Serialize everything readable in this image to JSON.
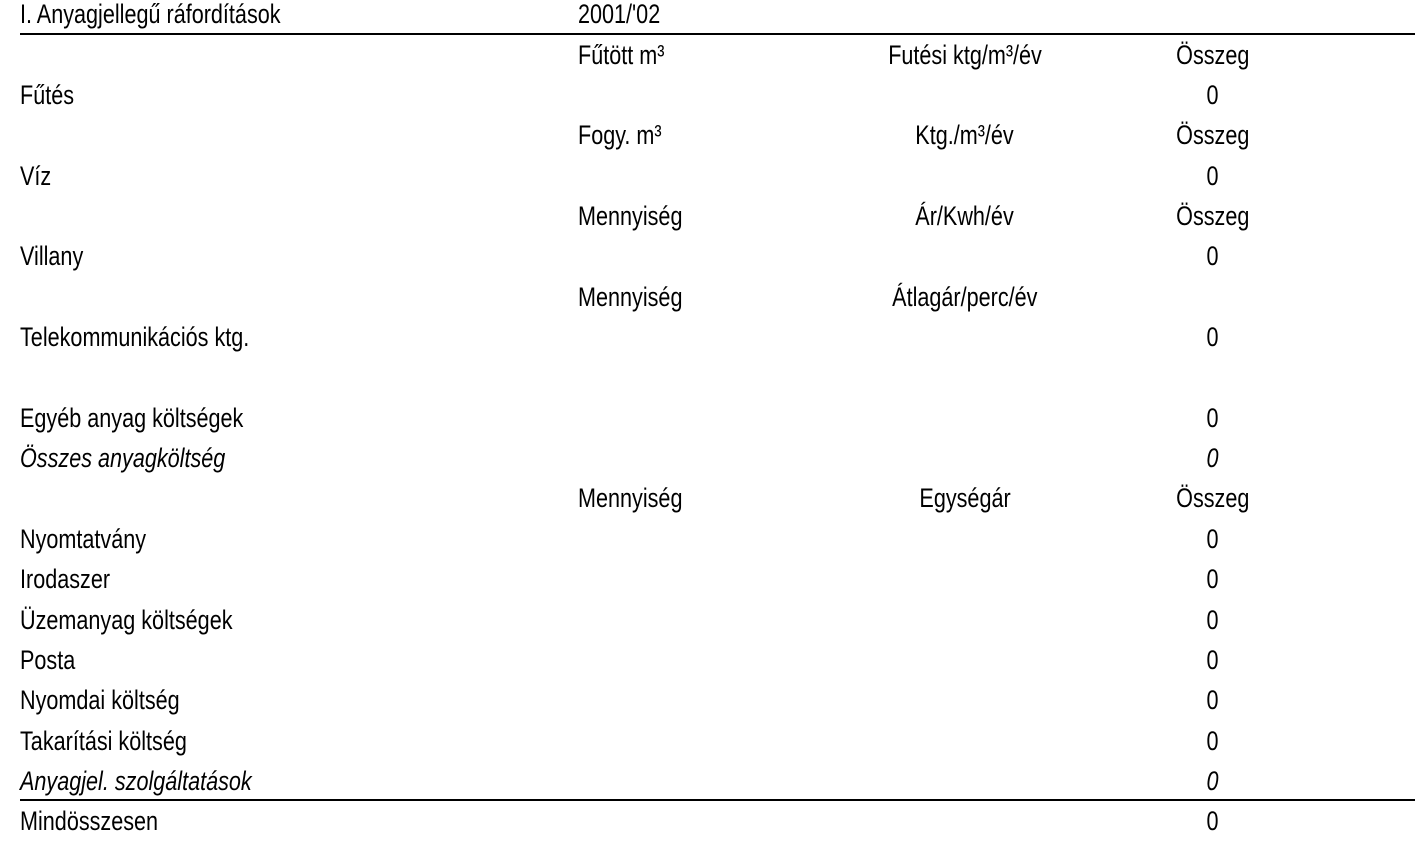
{
  "title": "I. Anyagjellegű ráfordítások",
  "year": "2001/'02",
  "rows": [
    {
      "c1": "",
      "c2": "Fűtött m³",
      "c3": "Futési ktg/m³/év",
      "c4": "Összeg",
      "style": "header"
    },
    {
      "c1": "Fűtés",
      "c2": "",
      "c3": "",
      "c4": "0",
      "style": "normal"
    },
    {
      "c1": "",
      "c2": "Fogy. m³",
      "c3": "Ktg./m³/év",
      "c4": "Összeg",
      "style": "header"
    },
    {
      "c1": "Víz",
      "c2": "",
      "c3": "",
      "c4": "0",
      "style": "normal"
    },
    {
      "c1": "",
      "c2": "Mennyiség",
      "c3": "Ár/Kwh/év",
      "c4": "Összeg",
      "style": "header"
    },
    {
      "c1": "Villany",
      "c2": "",
      "c3": "",
      "c4": "0",
      "style": "normal"
    },
    {
      "c1": "",
      "c2": "Mennyiség",
      "c3": "Átlagár/perc/év",
      "c4": "",
      "style": "header"
    },
    {
      "c1": "Telekommunikációs ktg.",
      "c2": "",
      "c3": "",
      "c4": "0",
      "style": "normal"
    },
    {
      "c1": "",
      "c2": "",
      "c3": "",
      "c4": "",
      "style": "normal"
    },
    {
      "c1": "Egyéb anyag költségek",
      "c2": "",
      "c3": "",
      "c4": "0",
      "style": "normal"
    },
    {
      "c1": "Összes anyagköltség",
      "c2": "",
      "c3": "",
      "c4": "0",
      "style": "italic"
    },
    {
      "c1": "",
      "c2": "Mennyiség",
      "c3": "Egységár",
      "c4": "Összeg",
      "style": "header"
    },
    {
      "c1": "Nyomtatvány",
      "c2": "",
      "c3": "",
      "c4": "0",
      "style": "normal"
    },
    {
      "c1": "Irodaszer",
      "c2": "",
      "c3": "",
      "c4": "0",
      "style": "normal"
    },
    {
      "c1": "Üzemanyag költségek",
      "c2": "",
      "c3": "",
      "c4": "0",
      "style": "normal"
    },
    {
      "c1": "Posta",
      "c2": "",
      "c3": "",
      "c4": "0",
      "style": "normal"
    },
    {
      "c1": "Nyomdai költség",
      "c2": "",
      "c3": "",
      "c4": "0",
      "style": "normal"
    },
    {
      "c1": "Takarítási költség",
      "c2": "",
      "c3": "",
      "c4": "0",
      "style": "normal"
    },
    {
      "c1": "Anyagjel. szolgáltatások",
      "c2": "",
      "c3": "",
      "c4": "0",
      "style": "italic"
    },
    {
      "c1": "Mindösszesen",
      "c2": "",
      "c3": "",
      "c4": "0",
      "style": "total"
    }
  ]
}
